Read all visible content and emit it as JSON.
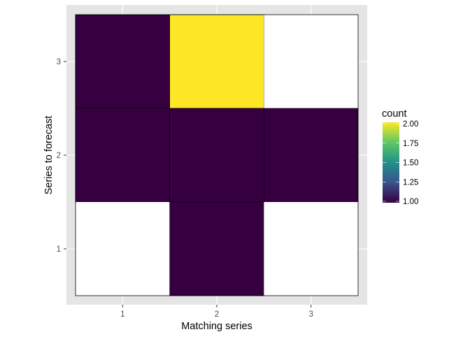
{
  "chart_data": {
    "type": "heatmap",
    "title": "",
    "xlabel": "Matching series",
    "ylabel": "Series to forecast",
    "x_categories": [
      "1",
      "2",
      "3"
    ],
    "y_categories": [
      "1",
      "2",
      "3"
    ],
    "cells": [
      {
        "x": "1",
        "y": "3",
        "count": 1
      },
      {
        "x": "2",
        "y": "3",
        "count": 2
      },
      {
        "x": "3",
        "y": "3",
        "count": null
      },
      {
        "x": "1",
        "y": "2",
        "count": 1
      },
      {
        "x": "2",
        "y": "2",
        "count": 1
      },
      {
        "x": "3",
        "y": "2",
        "count": 1
      },
      {
        "x": "1",
        "y": "1",
        "count": null
      },
      {
        "x": "2",
        "y": "1",
        "count": 1
      },
      {
        "x": "3",
        "y": "1",
        "count": null
      }
    ],
    "legend": {
      "title": "count",
      "placement": "right",
      "range": [
        1.0,
        2.0
      ],
      "ticks": [
        "2.00",
        "1.75",
        "1.50",
        "1.25",
        "1.00"
      ],
      "colormap": "viridis",
      "low_color": "#360040",
      "high_color": "#FDE725",
      "na_color": "#FFFFFF"
    },
    "panel_background": "#EBEBEB",
    "grid": true
  }
}
